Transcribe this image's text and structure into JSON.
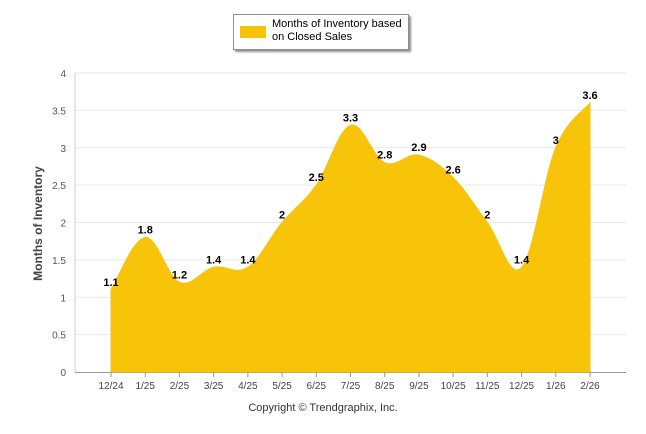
{
  "colors": {
    "area": "#F7C409",
    "grid": "#e9e9e9",
    "axis": "#999999"
  },
  "chart_data": {
    "type": "area",
    "legend": "Months of Inventory based on Closed Sales",
    "legend_position": "top-center",
    "ylabel": "Months of Inventory",
    "ylim": [
      0,
      4
    ],
    "yticks": [
      "0",
      "0.5",
      "1",
      "1.5",
      "2",
      "2.5",
      "3",
      "3.5",
      "4"
    ],
    "grid": true,
    "categories": [
      "12/24",
      "1/25",
      "2/25",
      "3/25",
      "4/25",
      "5/25",
      "6/25",
      "7/25",
      "8/25",
      "9/25",
      "10/25",
      "11/25",
      "12/25",
      "1/26",
      "2/26"
    ],
    "series": [
      {
        "name": "Months of Inventory based on Closed Sales",
        "values": [
          1.1,
          1.8,
          1.2,
          1.4,
          1.4,
          2,
          2.5,
          3.3,
          2.8,
          2.9,
          2.6,
          2,
          1.4,
          3,
          3.6
        ],
        "labels": [
          "1.1",
          "1.8",
          "1.2",
          "1.4",
          "1.4",
          "2",
          "2.5",
          "3.3",
          "2.8",
          "2.9",
          "2.6",
          "2",
          "1.4",
          "3",
          "3.6"
        ]
      }
    ]
  },
  "copyright": "Copyright © Trendgraphix, Inc."
}
